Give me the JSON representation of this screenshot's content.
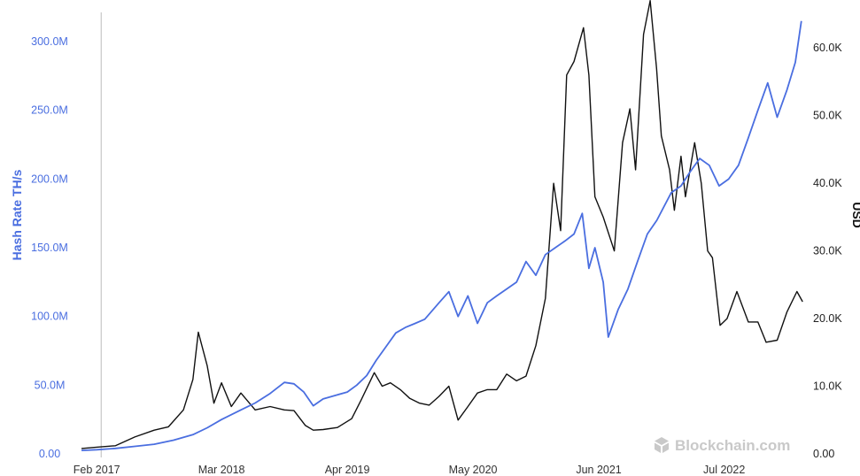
{
  "chart_data": {
    "type": "line",
    "ylabel_left": "Hash Rate TH/s",
    "ylabel_right": "USD",
    "watermark": "Blockchain.com",
    "x_tick_labels": [
      "Feb 2017",
      "Mar 2018",
      "Apr 2019",
      "May 2020",
      "Jun 2021",
      "Jul 2022"
    ],
    "y_left_ticks": [
      "0.00",
      "50.0M",
      "100.0M",
      "150.0M",
      "200.0M",
      "250.0M",
      "300.0M"
    ],
    "y_right_ticks": [
      "0.00",
      "10.0K",
      "20.0K",
      "30.0K",
      "40.0K",
      "50.0K",
      "60.0K"
    ],
    "ylim_left": [
      0,
      320000000
    ],
    "ylim_right": [
      0,
      65000
    ],
    "xlim": [
      "2016-12-15",
      "2023-03-10"
    ],
    "grid": false,
    "marker_line_date": "2017-02-15",
    "colors": {
      "hash_rate": "#4a6ee0",
      "price": "#111111",
      "marker_line": "#bbbbbb"
    },
    "series": [
      {
        "name": "Hash Rate TH/s",
        "axis": "left",
        "points": [
          [
            "2016-12-15",
            2500000
          ],
          [
            "2017-02-01",
            3000000
          ],
          [
            "2017-04-01",
            4000000
          ],
          [
            "2017-06-01",
            5500000
          ],
          [
            "2017-08-01",
            7000000
          ],
          [
            "2017-10-01",
            10000000
          ],
          [
            "2017-12-01",
            14000000
          ],
          [
            "2018-01-15",
            19000000
          ],
          [
            "2018-03-01",
            25000000
          ],
          [
            "2018-05-01",
            32000000
          ],
          [
            "2018-06-15",
            37000000
          ],
          [
            "2018-08-01",
            44000000
          ],
          [
            "2018-09-15",
            52000000
          ],
          [
            "2018-10-15",
            51000000
          ],
          [
            "2018-11-15",
            45000000
          ],
          [
            "2018-12-15",
            35000000
          ],
          [
            "2019-01-15",
            40000000
          ],
          [
            "2019-03-01",
            43000000
          ],
          [
            "2019-04-01",
            45000000
          ],
          [
            "2019-05-01",
            50000000
          ],
          [
            "2019-06-01",
            57000000
          ],
          [
            "2019-07-01",
            68000000
          ],
          [
            "2019-08-01",
            78000000
          ],
          [
            "2019-09-01",
            88000000
          ],
          [
            "2019-10-01",
            92000000
          ],
          [
            "2019-11-01",
            95000000
          ],
          [
            "2019-12-01",
            98000000
          ],
          [
            "2020-01-15",
            110000000
          ],
          [
            "2020-02-15",
            118000000
          ],
          [
            "2020-03-15",
            100000000
          ],
          [
            "2020-04-15",
            115000000
          ],
          [
            "2020-05-15",
            95000000
          ],
          [
            "2020-06-15",
            110000000
          ],
          [
            "2020-07-15",
            115000000
          ],
          [
            "2020-08-15",
            120000000
          ],
          [
            "2020-09-15",
            125000000
          ],
          [
            "2020-10-15",
            140000000
          ],
          [
            "2020-11-15",
            130000000
          ],
          [
            "2020-12-15",
            145000000
          ],
          [
            "2021-01-15",
            150000000
          ],
          [
            "2021-02-15",
            155000000
          ],
          [
            "2021-03-15",
            160000000
          ],
          [
            "2021-04-10",
            175000000
          ],
          [
            "2021-05-01",
            135000000
          ],
          [
            "2021-05-20",
            150000000
          ],
          [
            "2021-06-15",
            125000000
          ],
          [
            "2021-07-01",
            85000000
          ],
          [
            "2021-08-01",
            105000000
          ],
          [
            "2021-09-01",
            120000000
          ],
          [
            "2021-10-01",
            140000000
          ],
          [
            "2021-11-01",
            160000000
          ],
          [
            "2021-12-01",
            170000000
          ],
          [
            "2022-01-15",
            190000000
          ],
          [
            "2022-02-15",
            195000000
          ],
          [
            "2022-03-15",
            205000000
          ],
          [
            "2022-04-15",
            215000000
          ],
          [
            "2022-05-15",
            210000000
          ],
          [
            "2022-06-15",
            195000000
          ],
          [
            "2022-07-15",
            200000000
          ],
          [
            "2022-08-15",
            210000000
          ],
          [
            "2022-09-15",
            230000000
          ],
          [
            "2022-10-15",
            250000000
          ],
          [
            "2022-11-15",
            270000000
          ],
          [
            "2022-12-15",
            245000000
          ],
          [
            "2023-01-15",
            265000000
          ],
          [
            "2023-02-10",
            285000000
          ],
          [
            "2023-03-01",
            315000000
          ]
        ]
      },
      {
        "name": "USD",
        "axis": "right",
        "points": [
          [
            "2016-12-15",
            800
          ],
          [
            "2017-02-01",
            1000
          ],
          [
            "2017-04-01",
            1200
          ],
          [
            "2017-06-01",
            2500
          ],
          [
            "2017-08-01",
            3500
          ],
          [
            "2017-09-15",
            4000
          ],
          [
            "2017-11-01",
            6500
          ],
          [
            "2017-12-01",
            11000
          ],
          [
            "2017-12-18",
            18000
          ],
          [
            "2018-01-15",
            13000
          ],
          [
            "2018-02-05",
            7500
          ],
          [
            "2018-03-01",
            10500
          ],
          [
            "2018-04-01",
            7000
          ],
          [
            "2018-05-01",
            9000
          ],
          [
            "2018-06-15",
            6500
          ],
          [
            "2018-08-01",
            7000
          ],
          [
            "2018-09-15",
            6500
          ],
          [
            "2018-10-15",
            6400
          ],
          [
            "2018-11-20",
            4200
          ],
          [
            "2018-12-15",
            3500
          ],
          [
            "2019-01-15",
            3600
          ],
          [
            "2019-03-01",
            3900
          ],
          [
            "2019-04-15",
            5200
          ],
          [
            "2019-05-15",
            8000
          ],
          [
            "2019-06-25",
            12000
          ],
          [
            "2019-07-20",
            10000
          ],
          [
            "2019-08-15",
            10500
          ],
          [
            "2019-09-15",
            9500
          ],
          [
            "2019-10-15",
            8200
          ],
          [
            "2019-11-15",
            7500
          ],
          [
            "2019-12-15",
            7200
          ],
          [
            "2020-01-15",
            8500
          ],
          [
            "2020-02-15",
            10000
          ],
          [
            "2020-03-15",
            5000
          ],
          [
            "2020-04-15",
            7000
          ],
          [
            "2020-05-15",
            9000
          ],
          [
            "2020-06-15",
            9500
          ],
          [
            "2020-07-15",
            9500
          ],
          [
            "2020-08-15",
            11800
          ],
          [
            "2020-09-15",
            10800
          ],
          [
            "2020-10-15",
            11500
          ],
          [
            "2020-11-15",
            16000
          ],
          [
            "2020-12-15",
            23000
          ],
          [
            "2021-01-10",
            40000
          ],
          [
            "2021-02-01",
            33000
          ],
          [
            "2021-02-20",
            56000
          ],
          [
            "2021-03-15",
            58000
          ],
          [
            "2021-04-14",
            63000
          ],
          [
            "2021-05-01",
            56000
          ],
          [
            "2021-05-20",
            38000
          ],
          [
            "2021-06-15",
            35000
          ],
          [
            "2021-07-20",
            30000
          ],
          [
            "2021-08-15",
            46000
          ],
          [
            "2021-09-07",
            51000
          ],
          [
            "2021-09-25",
            42000
          ],
          [
            "2021-10-20",
            62000
          ],
          [
            "2021-11-10",
            67000
          ],
          [
            "2021-11-30",
            57000
          ],
          [
            "2021-12-15",
            47000
          ],
          [
            "2022-01-10",
            42000
          ],
          [
            "2022-01-25",
            36000
          ],
          [
            "2022-02-15",
            44000
          ],
          [
            "2022-03-01",
            38000
          ],
          [
            "2022-03-30",
            46000
          ],
          [
            "2022-04-20",
            40000
          ],
          [
            "2022-05-10",
            30000
          ],
          [
            "2022-05-25",
            29000
          ],
          [
            "2022-06-18",
            19000
          ],
          [
            "2022-07-10",
            20000
          ],
          [
            "2022-08-10",
            24000
          ],
          [
            "2022-09-15",
            19500
          ],
          [
            "2022-10-15",
            19500
          ],
          [
            "2022-11-10",
            16500
          ],
          [
            "2022-12-15",
            16800
          ],
          [
            "2023-01-15",
            21000
          ],
          [
            "2023-02-15",
            24000
          ],
          [
            "2023-03-05",
            22500
          ]
        ]
      }
    ]
  }
}
